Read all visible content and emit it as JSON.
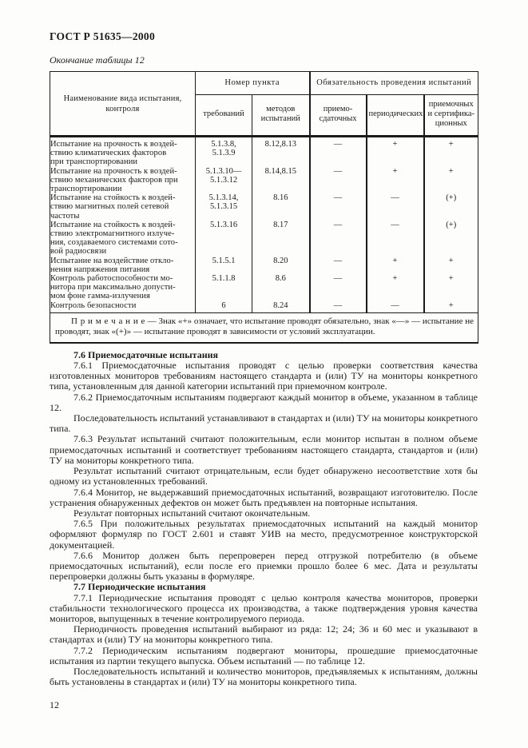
{
  "page": {
    "standard_number": "ГОСТ Р 51635—2000",
    "page_number": "12",
    "paper_color": "#fdfdfb",
    "ink_color": "#1b1b1b"
  },
  "table": {
    "caption": "Окончание таблицы 12",
    "header": {
      "name_col": "Наименование вида испытания,\nконтроля",
      "group_point": "Номер пункта",
      "col_requirements": "требований",
      "col_methods": "методов\nиспытаний",
      "group_mandatory": "Обязательность проведения испытаний",
      "col_acceptance": "приемо-\nсдаточных",
      "col_periodic": "периодических",
      "col_approval": "приемочных\nи сертифика-\nционных"
    },
    "rows": [
      {
        "name": "Испытание на прочность к воздей-\nствию климатических факторов\nпри транспортировании",
        "req": "5.1.3.8,\n5.1.3.9",
        "method": "8.12,8.13",
        "acceptance": "—",
        "periodic": "+",
        "approval": "+"
      },
      {
        "name": "Испытание на прочность к воздей-\nствию механических факторов при\nтранспортировании",
        "req": "5.1.3.10—\n5.1.3.12",
        "method": "8.14,8.15",
        "acceptance": "—",
        "periodic": "+",
        "approval": "+"
      },
      {
        "name": "Испытание на стойкость к воздей-\nствию магнитных полей сетевой\nчастоты",
        "req": "5.1.3.14,\n5.1.3.15",
        "method": "8.16",
        "acceptance": "—",
        "periodic": "—",
        "approval": "(+)"
      },
      {
        "name": "Испытание на стойкость к воздей-\nствию электромагнитного излуче-\nния, создаваемого системами сото-\nвой радиосвязи",
        "req": "5.1.3.16",
        "method": "8.17",
        "acceptance": "—",
        "periodic": "—",
        "approval": "(+)"
      },
      {
        "name": "Испытание на воздействие откло-\nнения напряжения питания",
        "req": "5.1.5.1",
        "method": "8.20",
        "acceptance": "—",
        "periodic": "+",
        "approval": "+"
      },
      {
        "name": "Контроль работоспособности мо-\nнитора при максимально допусти-\nмом фоне гамма-излучения",
        "req": "5.1.1.8",
        "method": "8.6",
        "acceptance": "—",
        "periodic": "+",
        "approval": "+"
      },
      {
        "name": "Контроль безопасности",
        "req": "6",
        "method": "8.24",
        "acceptance": "—",
        "periodic": "—",
        "approval": "+"
      }
    ],
    "note_label": "П р и м е ч а н и е",
    "note_text": " — Знак «+» означает, что испытание проводят обязательно, знак «—» — испытание не проводят, знак «(+)» — испытание проводят в зависимости от условий эксплуатации."
  },
  "content": {
    "paragraphs": [
      {
        "style": "bold",
        "text": "7.6 Приемосдаточные испытания"
      },
      {
        "style": "normal",
        "text": "7.6.1 Приемосдаточные испытания проводят с целью проверки соответствия качества изготовленных мониторов требованиям настоящего стандарта и (или) ТУ на мониторы конкретного типа, установленным для данной категории испытаний при приемочном контроле."
      },
      {
        "style": "normal",
        "text": "7.6.2 Приемосдаточным испытаниям подвергают каждый монитор в объеме, указанном в таблице 12."
      },
      {
        "style": "normal",
        "text": "Последовательность испытаний устанавливают в стандартах и (или) ТУ на мониторы конкретного типа."
      },
      {
        "style": "normal",
        "text": "7.6.3 Результат испытаний считают положительным, если монитор испытан в полном объеме приемосдаточных испытаний и соответствует требованиям настоящего стандарта, стандартов и (или) ТУ на мониторы конкретного типа."
      },
      {
        "style": "normal",
        "text": "Результат испытаний считают отрицательным, если будет обнаружено несоответствие хотя бы одному из установленных требований."
      },
      {
        "style": "normal",
        "text": "7.6.4 Монитор, не выдержавший приемосдаточных испытаний, возвращают изготовителю. После устранения обнаруженных дефектов он может быть предъявлен на повторные испытания."
      },
      {
        "style": "normal",
        "text": "Результат повторных испытаний считают окончательным."
      },
      {
        "style": "normal",
        "text": "7.6.5 При положительных результатах приемосдаточных испытаний на каждый монитор оформляют формуляр по ГОСТ 2.601 и ставят УИВ на место, предусмотренное конструкторской документацией."
      },
      {
        "style": "normal",
        "text": "7.6.6 Монитор должен быть перепроверен перед отгрузкой потребителю (в объеме приемосдаточных испытаний), если после его приемки прошло более 6 мес. Дата и результаты перепроверки должны быть указаны в формуляре."
      },
      {
        "style": "bold",
        "text": "7.7 Периодические испытания"
      },
      {
        "style": "normal",
        "text": "7.7.1 Периодические испытания проводят с целью контроля качества мониторов, проверки стабильности технологического процесса их производства, а также подтверждения уровня качества мониторов, выпущенных в течение контролируемого периода."
      },
      {
        "style": "normal",
        "text": "Периодичность проведения испытаний выбирают из ряда: 12; 24; 36 и 60 мес и указывают в стандартах и (или) ТУ на мониторы конкретного типа."
      },
      {
        "style": "normal",
        "text": "7.7.2 Периодическим испытаниям подвергают мониторы, прошедшие приемосдаточные испытания из партии текущего выпуска. Объем испытаний — по таблице 12."
      },
      {
        "style": "normal",
        "text": "Последовательность испытаний и количество мониторов, предъявляемых к испытаниям, должны быть установлены в стандартах и (или) ТУ на мониторы конкретного типа."
      }
    ]
  }
}
